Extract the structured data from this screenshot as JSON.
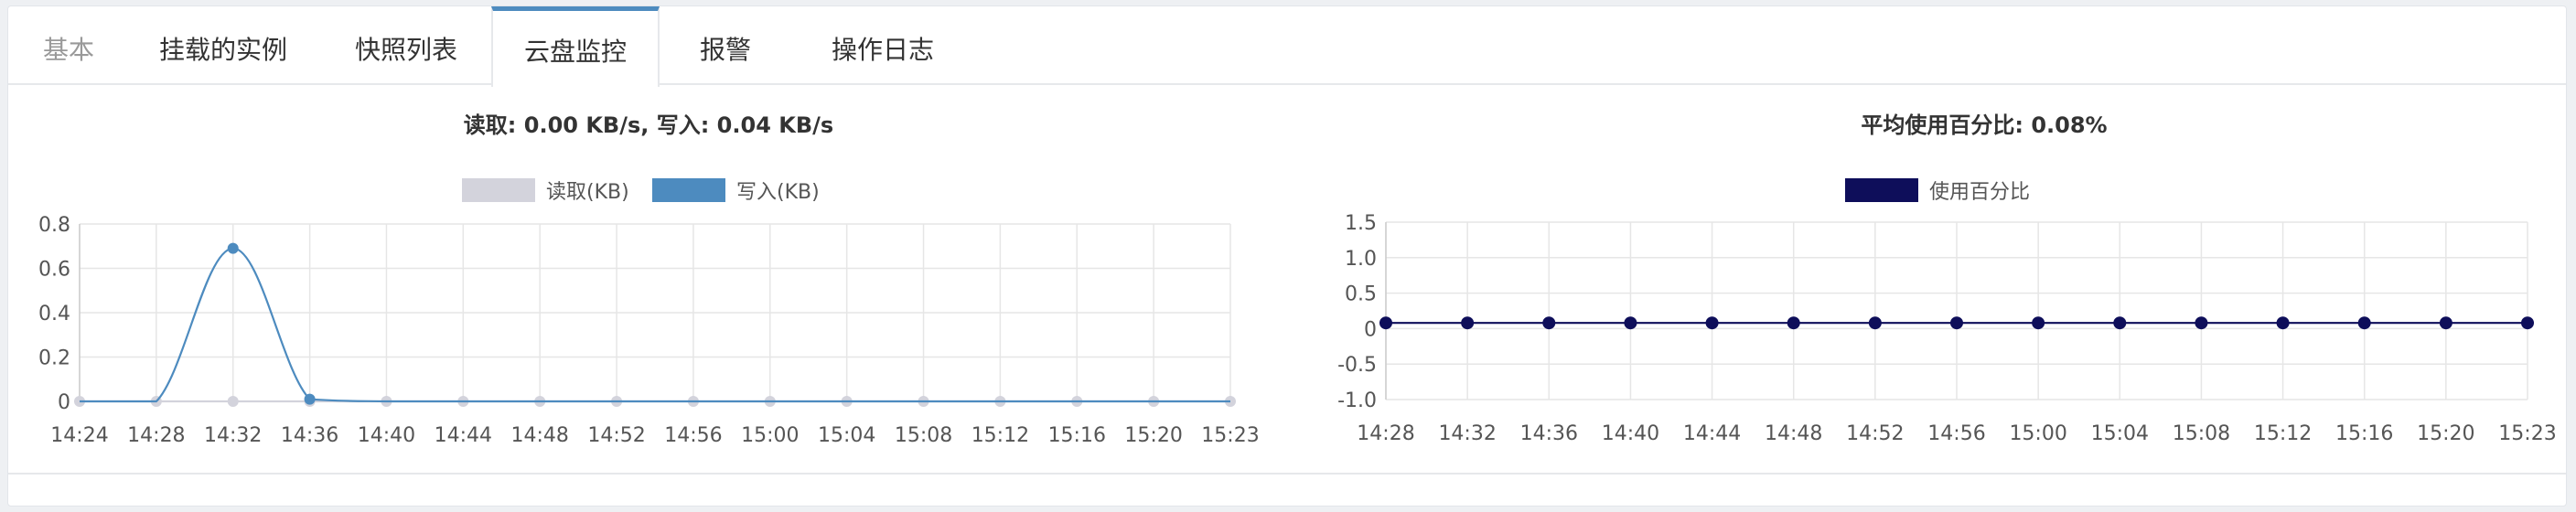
{
  "tabs": [
    {
      "label": "基本",
      "state": "disabled"
    },
    {
      "label": "挂载的实例",
      "state": "normal"
    },
    {
      "label": "快照列表",
      "state": "normal"
    },
    {
      "label": "云盘监控",
      "state": "active"
    },
    {
      "label": "报警",
      "state": "normal"
    },
    {
      "label": "操作日志",
      "state": "normal"
    }
  ],
  "colors": {
    "accent": "#4d8bbf",
    "read_series": "#d3d3dc",
    "write_series": "#4d8bbf",
    "usage_series": "#0e0e5a",
    "grid": "#e6e6e6"
  },
  "chart_data": [
    {
      "type": "line",
      "title": "读取: 0.00 KB/s, 写入: 0.04 KB/s",
      "legend_position": "top-center",
      "grid": true,
      "categories": [
        "14:24",
        "14:28",
        "14:32",
        "14:36",
        "14:40",
        "14:44",
        "14:48",
        "14:52",
        "14:56",
        "15:00",
        "15:04",
        "15:08",
        "15:12",
        "15:16",
        "15:20",
        "15:23"
      ],
      "yticks": [
        "0",
        "0.2",
        "0.4",
        "0.6",
        "0.8"
      ],
      "ylim": [
        0,
        0.8
      ],
      "series": [
        {
          "name": "读取(KB)",
          "values": [
            0,
            0,
            0,
            0,
            0,
            0,
            0,
            0,
            0,
            0,
            0,
            0,
            0,
            0,
            0,
            0
          ]
        },
        {
          "name": "写入(KB)",
          "values": [
            0,
            0,
            0.69,
            0.01,
            0,
            0,
            0,
            0,
            0,
            0,
            0,
            0,
            0,
            0,
            0,
            0
          ]
        }
      ]
    },
    {
      "type": "line",
      "title": "平均使用百分比: 0.08%",
      "legend_position": "top-center",
      "grid": true,
      "categories": [
        "14:28",
        "14:32",
        "14:36",
        "14:40",
        "14:44",
        "14:48",
        "14:52",
        "14:56",
        "15:00",
        "15:04",
        "15:08",
        "15:12",
        "15:16",
        "15:20",
        "15:23"
      ],
      "yticks": [
        "1.5",
        "1.0",
        "0.5",
        "0",
        "-0.5",
        "-1.0"
      ],
      "ylim": [
        -1.0,
        1.5
      ],
      "series": [
        {
          "name": "使用百分比",
          "values": [
            0.08,
            0.08,
            0.08,
            0.08,
            0.08,
            0.08,
            0.08,
            0.08,
            0.08,
            0.08,
            0.08,
            0.08,
            0.08,
            0.08,
            0.08
          ]
        }
      ]
    }
  ]
}
